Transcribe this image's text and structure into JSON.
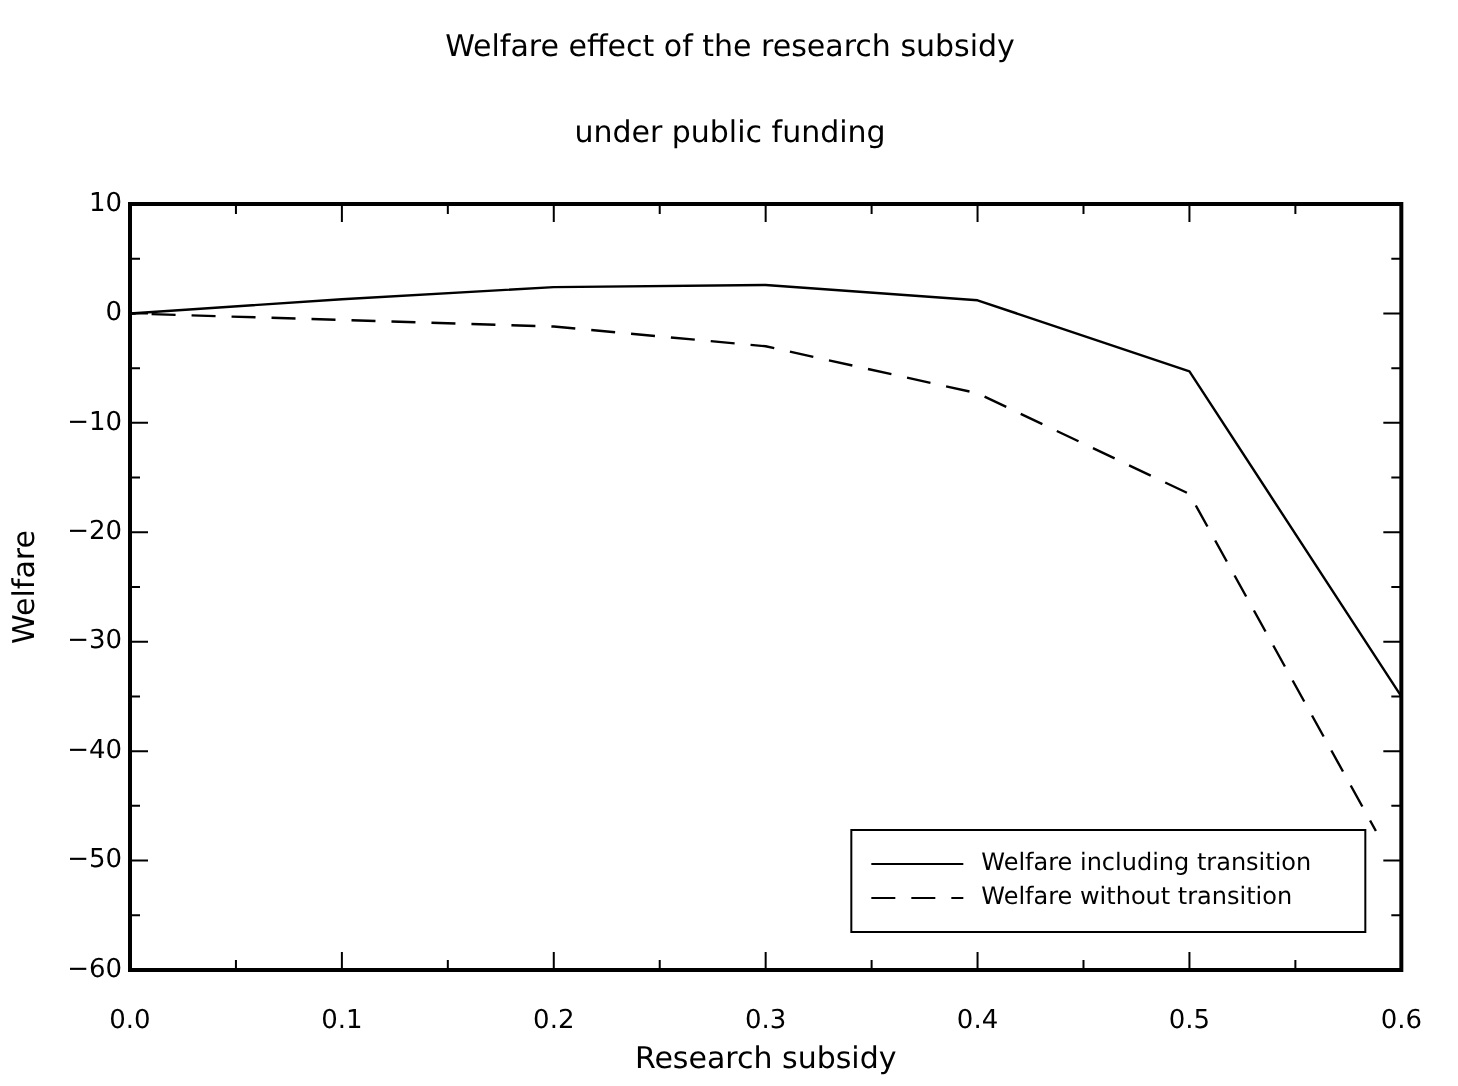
{
  "chart_data": {
    "type": "line",
    "title": "Welfare effect of the research subsidy",
    "subtitle": "under public funding",
    "xlabel": "Research subsidy",
    "ylabel": "Welfare",
    "x": [
      0,
      0.1,
      0.2,
      0.3,
      0.4,
      0.5,
      0.6
    ],
    "series": [
      {
        "name": "Welfare including transition",
        "color": "#000000",
        "line_style": "solid",
        "values": [
          0,
          1.3,
          2.4,
          2.6,
          1.2,
          -5.3,
          -35
        ]
      },
      {
        "name": "Welfare without transition",
        "color": "#000000",
        "line_style": "dashed",
        "x": [
          0,
          0.1,
          0.2,
          0.3,
          0.4,
          0.5,
          0.588
        ],
        "values": [
          0,
          -0.6,
          -1.2,
          -3.0,
          -7.3,
          -16.5,
          -47.3
        ]
      }
    ],
    "xlim": [
      0,
      0.6
    ],
    "xticks": [
      {
        "value": 0,
        "label": "0.0"
      },
      {
        "value": 0.05,
        "label": null
      },
      {
        "value": 0.1,
        "label": "0.1"
      },
      {
        "value": 0.15,
        "label": null
      },
      {
        "value": 0.2,
        "label": "0.2"
      },
      {
        "value": 0.25,
        "label": null
      },
      {
        "value": 0.3,
        "label": "0.3"
      },
      {
        "value": 0.35,
        "label": null
      },
      {
        "value": 0.4,
        "label": "0.4"
      },
      {
        "value": 0.45,
        "label": null
      },
      {
        "value": 0.5,
        "label": "0.5"
      },
      {
        "value": 0.55,
        "label": null
      },
      {
        "value": 0.6,
        "label": "0.6"
      }
    ],
    "ylim": [
      -60,
      10
    ],
    "yticks": [
      10,
      {
        "value": 5,
        "label": null
      },
      0,
      {
        "value": -5,
        "label": null
      },
      -10,
      {
        "value": -15,
        "label": null
      },
      -20,
      {
        "value": -25,
        "label": null
      },
      -30,
      {
        "value": -35,
        "label": null
      },
      -40,
      {
        "value": -45,
        "label": null
      },
      -50,
      {
        "value": -55,
        "label": null
      },
      -60
    ],
    "legend": "bottom right",
    "grid": false,
    "marker": "none"
  }
}
